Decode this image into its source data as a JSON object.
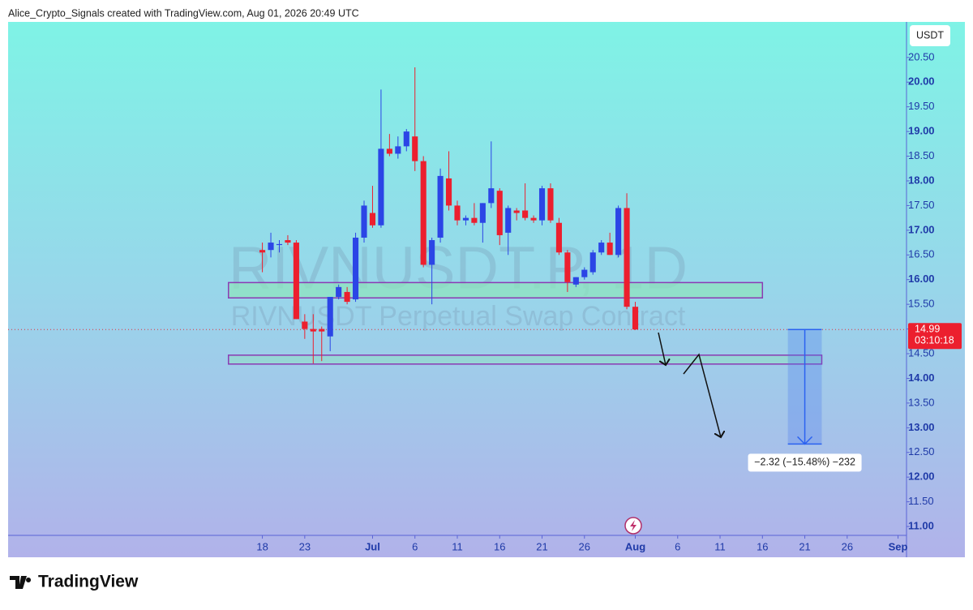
{
  "header": "Alice_Crypto_Signals created with TradingView.com, Aug 01, 2026 20:49 UTC",
  "brand": "TradingView",
  "chart_data": {
    "type": "candlestick",
    "title": "RIVNUSDT.P, 1D",
    "subtitle": "RIVNUSDT Perpetual Swap Contract",
    "currency": "USDT",
    "up_color": "#2b45e6",
    "down_color": "#ec1f2e",
    "x": [
      "2026-06-18",
      "2026-06-19",
      "2026-06-20",
      "2026-06-21",
      "2026-06-22",
      "2026-06-23",
      "2026-06-24",
      "2026-06-25",
      "2026-06-26",
      "2026-06-27",
      "2026-06-28",
      "2026-06-29",
      "2026-06-30",
      "2026-07-01",
      "2026-07-02",
      "2026-07-03",
      "2026-07-04",
      "2026-07-05",
      "2026-07-06",
      "2026-07-07",
      "2026-07-08",
      "2026-07-09",
      "2026-07-10",
      "2026-07-11",
      "2026-07-12",
      "2026-07-13",
      "2026-07-14",
      "2026-07-15",
      "2026-07-16",
      "2026-07-17",
      "2026-07-18",
      "2026-07-19",
      "2026-07-20",
      "2026-07-21",
      "2026-07-22",
      "2026-07-23",
      "2026-07-24",
      "2026-07-25",
      "2026-07-26",
      "2026-07-27",
      "2026-07-28",
      "2026-07-29",
      "2026-07-30",
      "2026-07-31",
      "2026-08-01"
    ],
    "open": [
      16.6,
      16.6,
      16.7,
      16.8,
      16.75,
      15.15,
      15.0,
      15.0,
      14.85,
      15.65,
      15.75,
      15.6,
      16.85,
      17.35,
      17.1,
      18.65,
      18.55,
      18.7,
      18.9,
      18.4,
      16.3,
      16.85,
      18.05,
      17.5,
      17.2,
      17.25,
      17.15,
      17.55,
      17.8,
      16.95,
      17.4,
      17.4,
      17.25,
      17.2,
      17.85,
      17.15,
      16.55,
      15.9,
      16.05,
      16.15,
      16.55,
      16.75,
      16.5,
      17.45,
      15.45
    ],
    "high": [
      16.75,
      16.95,
      16.8,
      16.9,
      16.8,
      15.3,
      15.3,
      15.05,
      15.65,
      15.9,
      15.85,
      16.95,
      17.6,
      17.9,
      19.85,
      18.95,
      18.9,
      19.05,
      20.3,
      18.5,
      16.85,
      18.25,
      18.6,
      17.6,
      17.3,
      17.55,
      17.55,
      18.8,
      17.85,
      17.5,
      17.45,
      17.95,
      17.3,
      17.9,
      17.95,
      17.25,
      16.6,
      16.05,
      16.25,
      16.6,
      16.8,
      16.95,
      17.5,
      17.75,
      15.55
    ],
    "low": [
      16.15,
      16.45,
      16.55,
      16.7,
      15.2,
      14.8,
      14.3,
      14.35,
      14.55,
      15.6,
      15.5,
      15.55,
      16.75,
      17.05,
      17.05,
      18.5,
      18.45,
      18.6,
      18.2,
      16.25,
      15.5,
      16.75,
      17.4,
      17.1,
      17.1,
      17.1,
      16.75,
      17.45,
      16.7,
      16.5,
      17.2,
      17.2,
      17.15,
      17.1,
      17.15,
      16.5,
      15.75,
      15.85,
      16.0,
      16.1,
      16.5,
      16.5,
      16.45,
      15.4,
      14.98
    ],
    "close": [
      16.55,
      16.75,
      16.72,
      16.75,
      15.2,
      15.0,
      14.95,
      14.95,
      15.65,
      15.85,
      15.55,
      16.85,
      17.5,
      17.1,
      18.65,
      18.55,
      18.7,
      19.0,
      18.4,
      16.3,
      16.8,
      18.1,
      17.5,
      17.2,
      17.25,
      17.15,
      17.55,
      17.85,
      16.9,
      17.45,
      17.35,
      17.25,
      17.2,
      17.85,
      17.2,
      16.55,
      15.95,
      16.05,
      16.2,
      16.55,
      16.75,
      16.5,
      17.45,
      15.45,
      14.99
    ],
    "xlim": [
      "2026-05-19",
      "2026-09-02"
    ],
    "xticks": [
      {
        "value": "2026-06-18",
        "label": "18"
      },
      {
        "value": "2026-06-23",
        "label": "23"
      },
      {
        "value": "2026-07-01",
        "label": "Jul"
      },
      {
        "value": "2026-07-06",
        "label": "6"
      },
      {
        "value": "2026-07-11",
        "label": "11"
      },
      {
        "value": "2026-07-16",
        "label": "16"
      },
      {
        "value": "2026-07-21",
        "label": "21"
      },
      {
        "value": "2026-07-26",
        "label": "26"
      },
      {
        "value": "2026-08-01",
        "label": "Aug"
      },
      {
        "value": "2026-08-06",
        "label": "6"
      },
      {
        "value": "2026-08-11",
        "label": "11"
      },
      {
        "value": "2026-08-16",
        "label": "16"
      },
      {
        "value": "2026-08-21",
        "label": "21"
      },
      {
        "value": "2026-08-26",
        "label": "26"
      },
      {
        "value": "2026-09-01",
        "label": "Sep"
      }
    ],
    "ylim": [
      10.82,
      21.22
    ],
    "yticks": [
      {
        "value": 11,
        "label": "11.00"
      },
      {
        "value": 11.5,
        "label": "11.50"
      },
      {
        "value": 12,
        "label": "12.00"
      },
      {
        "value": 12.5,
        "label": "12.50"
      },
      {
        "value": 13,
        "label": "13.00"
      },
      {
        "value": 13.5,
        "label": "13.50"
      },
      {
        "value": 14,
        "label": "14.00"
      },
      {
        "value": 14.5,
        "label": "14.50"
      },
      {
        "value": 15,
        "label": "15.00"
      },
      {
        "value": 15.5,
        "label": "15.50"
      },
      {
        "value": 16,
        "label": "16.00"
      },
      {
        "value": 16.5,
        "label": "16.50"
      },
      {
        "value": 17,
        "label": "17.00"
      },
      {
        "value": 17.5,
        "label": "17.50"
      },
      {
        "value": 18,
        "label": "18.00"
      },
      {
        "value": 18.5,
        "label": "18.50"
      },
      {
        "value": 19,
        "label": "19.00"
      },
      {
        "value": 19.5,
        "label": "19.50"
      },
      {
        "value": 20,
        "label": "20.00"
      },
      {
        "value": 20.5,
        "label": "20.50"
      }
    ],
    "last_price": 14.99,
    "countdown": "03:10:18",
    "zones": [
      {
        "start": "2026-06-14",
        "end": "2026-08-16",
        "low": 15.63,
        "high": 15.94
      },
      {
        "start": "2026-06-14",
        "end": "2026-08-23",
        "low": 14.29,
        "high": 14.47
      }
    ],
    "measure": {
      "start": "2026-08-19",
      "end": "2026-08-23",
      "from": 14.99,
      "to": 12.67,
      "label": "−2.32 (−15.48%) −232"
    }
  }
}
